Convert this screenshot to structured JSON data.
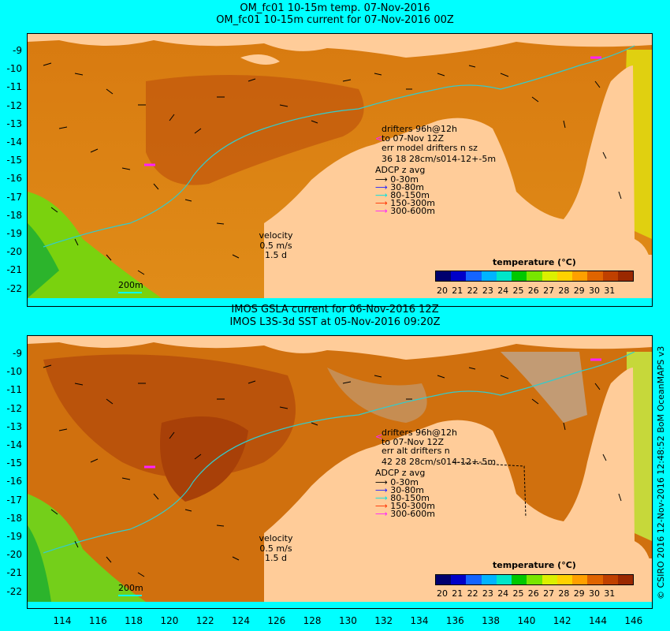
{
  "top_panel": {
    "title_line1": "OM_fc01 10-15m temp. 07-Nov-2016",
    "title_line2": "OM_fc01 10-15m current for 07-Nov-2016 00Z",
    "drifters_text1": "drifters 96h@12h",
    "drifters_text2": "to 07-Nov 12Z",
    "drifters_text3": "err model drifters n sz",
    "drifters_stats": "36 18 28cm/s014-12+-5m",
    "adcp_title": "ADCP z avg",
    "adcp_items": [
      "0-30m",
      "30-80m",
      "80-150m",
      "150-300m",
      "300-600m"
    ],
    "velocity_label": "velocity",
    "velocity_value": "0.5 m/s",
    "velocity_time": "1.5 d",
    "isobath_label": "200m",
    "colorbar_title": "temperature (°C)"
  },
  "bottom_panel": {
    "title_line1": "IMOS GSLA current for 06-Nov-2016 12Z",
    "title_line2": "IMOS L3S-3d SST at 05-Nov-2016 09:20Z",
    "drifters_text1": "drifters 96h@12h",
    "drifters_text2": "to 07-Nov 12Z",
    "drifters_text3": "err alt drifters n",
    "drifters_stats": "42 28 28cm/s014-12+-5m",
    "adcp_title": "ADCP z avg",
    "adcp_items": [
      "0-30m",
      "30-80m",
      "80-150m",
      "150-300m",
      "300-600m"
    ],
    "velocity_label": "velocity",
    "velocity_value": "0.5 m/s",
    "velocity_time": "1.5 d",
    "isobath_label": "200m",
    "colorbar_title": "temperature (°C)"
  },
  "colorbar_ticks": [
    "20",
    "21",
    "22",
    "23",
    "24",
    "25",
    "26",
    "27",
    "28",
    "29",
    "30",
    "31"
  ],
  "colorbar_colors": [
    "#00006e",
    "#0000c8",
    "#1464ff",
    "#00b4ff",
    "#00e6c8",
    "#00c800",
    "#78e600",
    "#dcf000",
    "#ffd200",
    "#ffa000",
    "#e06400",
    "#c04000",
    "#9a2800"
  ],
  "adcp_colors": [
    "#000000",
    "#1e1eff",
    "#00e0e0",
    "#ff3000",
    "#ff20ff"
  ],
  "y_ticks": [
    "-9",
    "-10",
    "-11",
    "-12",
    "-13",
    "-14",
    "-15",
    "-16",
    "-17",
    "-18",
    "-19",
    "-20",
    "-21",
    "-22"
  ],
  "x_ticks": [
    "114",
    "116",
    "118",
    "120",
    "122",
    "124",
    "126",
    "128",
    "130",
    "132",
    "134",
    "136",
    "138",
    "140",
    "142",
    "144",
    "146"
  ],
  "credit": "© CSIRO 2016  12-Nov-2016 12:48:52 BoM OceanMAPS v3",
  "colors": {
    "background": "#00ffff",
    "land": "#ffcc99",
    "ocean_warm": "#d8780c",
    "ocean_hot": "#b8500a",
    "ocean_cool": "#3cc83c",
    "shelf": "#e8a020",
    "isobath": "#33cccc",
    "nodata": "#c0a080"
  }
}
